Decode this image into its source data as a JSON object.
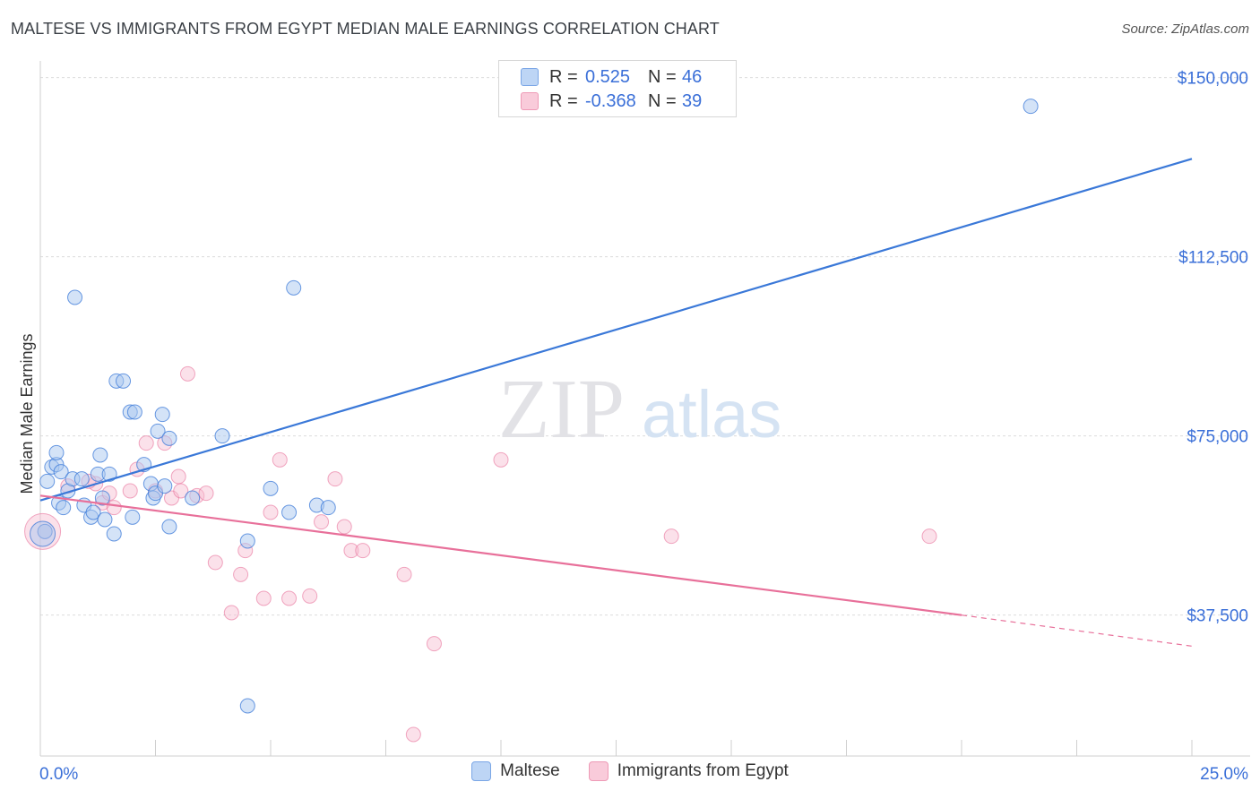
{
  "title": "MALTESE VS IMMIGRANTS FROM EGYPT MEDIAN MALE EARNINGS CORRELATION CHART",
  "source": "Source: ZipAtlas.com",
  "watermark": {
    "zip": "ZIP",
    "atlas": "atlas"
  },
  "legend": {
    "r_label": "R =",
    "n_label": "N =",
    "series1": {
      "r": "0.525",
      "n": "46"
    },
    "series2": {
      "r": "-0.368",
      "n": "39"
    }
  },
  "bottom_legend": {
    "series1": "Maltese",
    "series2": "Immigrants from Egypt"
  },
  "chart_data": {
    "type": "scatter",
    "xlabel": "",
    "ylabel": "Median Male Earnings",
    "xlim": [
      0,
      25
    ],
    "ylim": [
      8000,
      155000
    ],
    "x_tick_labels": [
      "0.0%",
      "25.0%"
    ],
    "y_ticks": [
      37500,
      75000,
      112500,
      150000
    ],
    "y_tick_labels": [
      "$37,500",
      "$75,000",
      "$112,500",
      "$150,000"
    ],
    "grid": true,
    "colors": {
      "series1": "#3a78d8",
      "series2": "#e8709a",
      "fill1": "#aac8f0",
      "fill2": "#f6bcd0",
      "axis_text": "#3a6fd8"
    },
    "series": [
      {
        "name": "Maltese",
        "trend": {
          "x": [
            0,
            25
          ],
          "y": [
            61500,
            133000
          ]
        },
        "points": [
          [
            0.1,
            55000
          ],
          [
            0.15,
            65500
          ],
          [
            0.25,
            68500
          ],
          [
            0.35,
            69000
          ],
          [
            0.35,
            71500
          ],
          [
            0.4,
            61000
          ],
          [
            0.45,
            67500
          ],
          [
            0.5,
            60000
          ],
          [
            0.6,
            63500
          ],
          [
            0.7,
            66000
          ],
          [
            0.75,
            104000
          ],
          [
            0.9,
            66000
          ],
          [
            0.95,
            60500
          ],
          [
            1.1,
            58000
          ],
          [
            1.15,
            59000
          ],
          [
            1.25,
            67000
          ],
          [
            1.3,
            71000
          ],
          [
            1.35,
            62000
          ],
          [
            1.4,
            57500
          ],
          [
            1.5,
            67000
          ],
          [
            1.6,
            54500
          ],
          [
            1.65,
            86500
          ],
          [
            1.8,
            86500
          ],
          [
            1.95,
            80000
          ],
          [
            2.0,
            58000
          ],
          [
            2.05,
            80000
          ],
          [
            2.25,
            69000
          ],
          [
            2.4,
            65000
          ],
          [
            2.45,
            62000
          ],
          [
            2.5,
            63000
          ],
          [
            2.55,
            76000
          ],
          [
            2.65,
            79500
          ],
          [
            2.7,
            64500
          ],
          [
            2.8,
            74500
          ],
          [
            2.8,
            56000
          ],
          [
            3.3,
            62000
          ],
          [
            3.95,
            75000
          ],
          [
            4.5,
            53000
          ],
          [
            4.5,
            18500
          ],
          [
            5.0,
            64000
          ],
          [
            5.4,
            59000
          ],
          [
            5.5,
            106000
          ],
          [
            6.0,
            60500
          ],
          [
            6.25,
            60000
          ],
          [
            21.5,
            144000
          ],
          [
            0.05,
            54500
          ]
        ]
      },
      {
        "name": "Immigrants from Egypt",
        "trend": {
          "x": [
            0,
            20
          ],
          "y": [
            62500,
            37500
          ]
        },
        "trend_dashed": {
          "x": [
            20,
            25
          ],
          "y": [
            37500,
            31000
          ]
        },
        "points": [
          [
            0.1,
            55000
          ],
          [
            0.6,
            64500
          ],
          [
            1.2,
            65000
          ],
          [
            1.35,
            61000
          ],
          [
            1.5,
            63000
          ],
          [
            1.6,
            60000
          ],
          [
            1.95,
            63500
          ],
          [
            2.1,
            68000
          ],
          [
            2.3,
            73500
          ],
          [
            2.5,
            63500
          ],
          [
            2.7,
            73500
          ],
          [
            2.85,
            62000
          ],
          [
            3.0,
            66500
          ],
          [
            3.05,
            63500
          ],
          [
            3.2,
            88000
          ],
          [
            3.4,
            62500
          ],
          [
            3.6,
            63000
          ],
          [
            3.8,
            48500
          ],
          [
            4.15,
            38000
          ],
          [
            4.35,
            46000
          ],
          [
            4.45,
            51000
          ],
          [
            4.85,
            41000
          ],
          [
            5.0,
            59000
          ],
          [
            5.2,
            70000
          ],
          [
            5.4,
            41000
          ],
          [
            5.85,
            41500
          ],
          [
            6.1,
            57000
          ],
          [
            6.4,
            66000
          ],
          [
            6.6,
            56000
          ],
          [
            6.75,
            51000
          ],
          [
            7.0,
            51000
          ],
          [
            7.9,
            46000
          ],
          [
            8.1,
            12500
          ],
          [
            8.55,
            31500
          ],
          [
            10.0,
            70000
          ],
          [
            13.7,
            54000
          ],
          [
            19.3,
            54000
          ],
          [
            0.05,
            55000
          ],
          [
            1.05,
            65500
          ]
        ]
      }
    ]
  }
}
